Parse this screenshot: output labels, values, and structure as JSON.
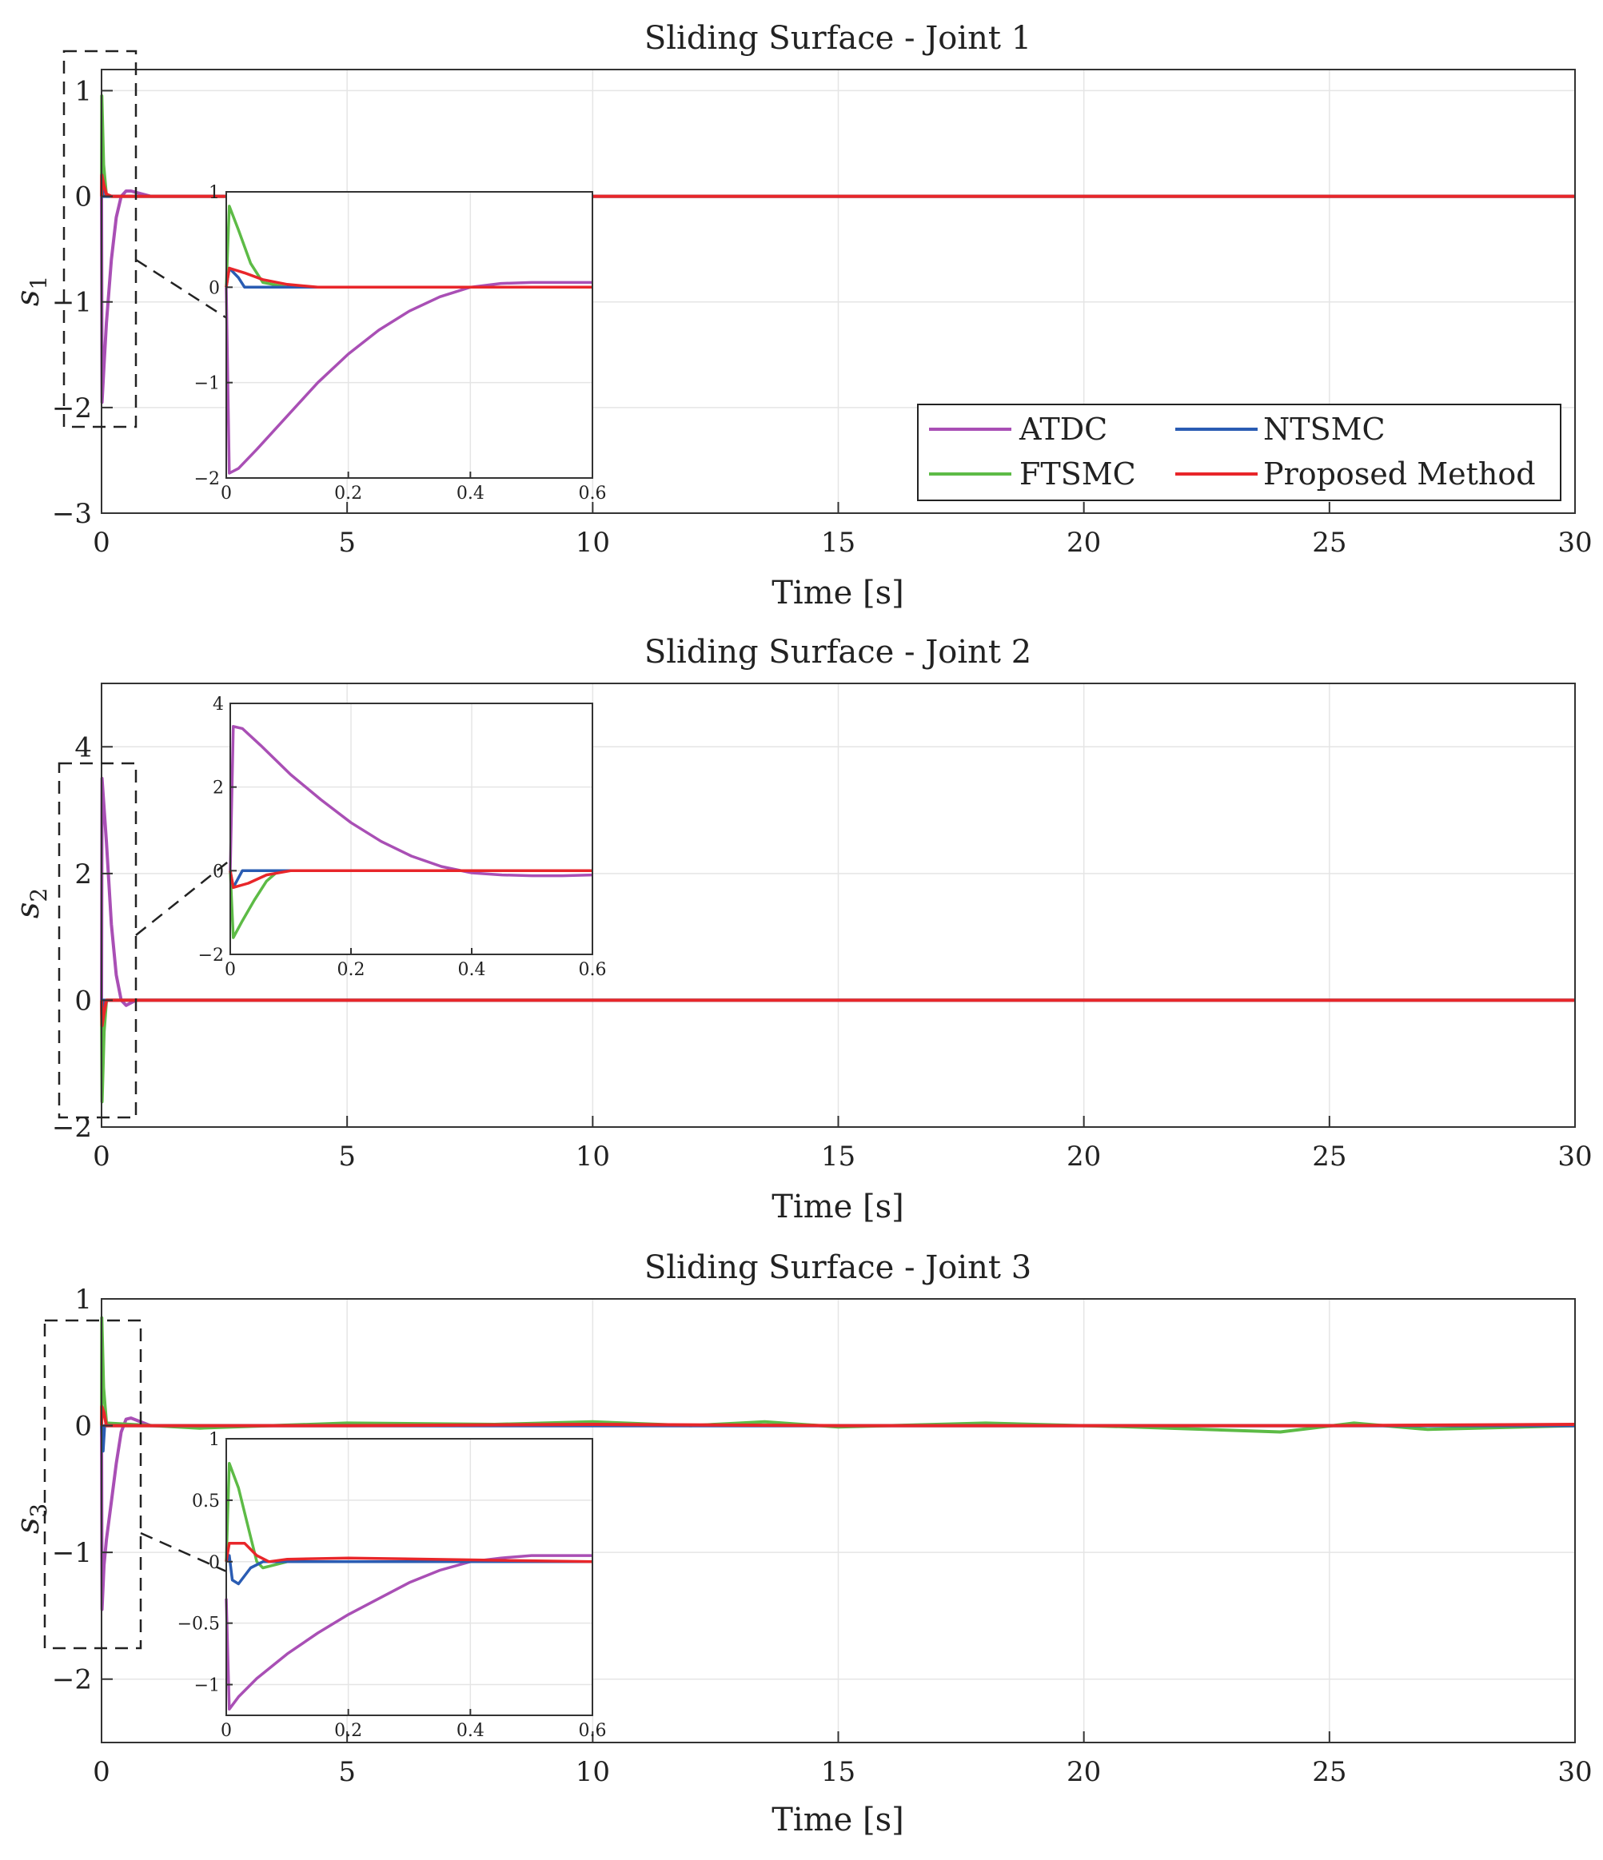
{
  "colors": {
    "atdc": "#a94fb5",
    "ftsmc": "#5dbb46",
    "ntsmc": "#2a5cb3",
    "proposed": "#e8262a"
  },
  "legend": {
    "atdc": "ATDC",
    "ftsmc": "FTSMC",
    "ntsmc": "NTSMC",
    "proposed": "Proposed Method"
  },
  "chart_data": [
    {
      "type": "line",
      "title": "Sliding Surface - Joint 1",
      "xlabel": "Time [s]",
      "ylabel": "s",
      "ylabel_sub": "1",
      "xlim": [
        0,
        30
      ],
      "ylim": [
        -3,
        1.2
      ],
      "xticks": [
        0,
        5,
        10,
        15,
        20,
        25,
        30
      ],
      "yticks": [
        -3,
        -2,
        -1,
        0,
        1
      ],
      "grid": true,
      "legend_position": "bottom-right",
      "series": [
        {
          "name": "ATDC",
          "x": [
            0,
            0.01,
            0.05,
            0.1,
            0.2,
            0.3,
            0.4,
            0.5,
            0.6,
            1,
            30
          ],
          "y": [
            0,
            -1.95,
            -1.6,
            -1.2,
            -0.6,
            -0.2,
            0,
            0.05,
            0.05,
            0,
            0
          ]
        },
        {
          "name": "FTSMC",
          "x": [
            0,
            0.005,
            0.04,
            0.1,
            0.2,
            30
          ],
          "y": [
            0,
            0.95,
            0.3,
            0,
            0,
            0
          ]
        },
        {
          "name": "NTSMC",
          "x": [
            0,
            0.005,
            0.03,
            0.05,
            30
          ],
          "y": [
            0,
            0.2,
            0,
            0,
            0
          ]
        },
        {
          "name": "Proposed Method",
          "x": [
            0,
            0.005,
            0.05,
            0.1,
            0.2,
            30
          ],
          "y": [
            0,
            0.2,
            0.1,
            0.02,
            0,
            0
          ]
        }
      ],
      "inset": {
        "xlim": [
          0,
          0.6
        ],
        "ylim": [
          -2,
          1
        ],
        "xticks": [
          0,
          0.2,
          0.4,
          0.6
        ],
        "yticks": [
          -2,
          -1,
          0,
          1
        ],
        "xtick_labels": [
          "0",
          "0.2",
          "0.4",
          "0.6"
        ],
        "ytick_labels": [
          "−2",
          "−1",
          "0",
          "1"
        ],
        "series": [
          {
            "name": "ATDC",
            "x": [
              0,
              0.005,
              0.02,
              0.05,
              0.1,
              0.15,
              0.2,
              0.25,
              0.3,
              0.35,
              0.4,
              0.45,
              0.5,
              0.55,
              0.6
            ],
            "y": [
              0,
              -1.95,
              -1.9,
              -1.7,
              -1.35,
              -1.0,
              -0.7,
              -0.45,
              -0.25,
              -0.1,
              0,
              0.04,
              0.05,
              0.05,
              0.05
            ]
          },
          {
            "name": "FTSMC",
            "x": [
              0,
              0.005,
              0.02,
              0.04,
              0.06,
              0.1,
              0.6
            ],
            "y": [
              0,
              0.85,
              0.6,
              0.25,
              0.05,
              0,
              0
            ]
          },
          {
            "name": "NTSMC",
            "x": [
              0,
              0.005,
              0.02,
              0.03,
              0.05,
              0.6
            ],
            "y": [
              0,
              0.2,
              0.1,
              0,
              0,
              0
            ]
          },
          {
            "name": "Proposed Method",
            "x": [
              0,
              0.005,
              0.03,
              0.06,
              0.1,
              0.15,
              0.6
            ],
            "y": [
              0,
              0.2,
              0.15,
              0.08,
              0.03,
              0,
              0
            ]
          }
        ]
      }
    },
    {
      "type": "line",
      "title": "Sliding Surface - Joint 2",
      "xlabel": "Time [s]",
      "ylabel": "s",
      "ylabel_sub": "2",
      "xlim": [
        0,
        30
      ],
      "ylim": [
        -2,
        5
      ],
      "xticks": [
        0,
        5,
        10,
        15,
        20,
        25,
        30
      ],
      "yticks": [
        -2,
        0,
        2,
        4
      ],
      "grid": true,
      "series": [
        {
          "name": "ATDC",
          "x": [
            0,
            0.01,
            0.1,
            0.2,
            0.3,
            0.4,
            0.5,
            0.7,
            30
          ],
          "y": [
            0,
            3.5,
            2.5,
            1.2,
            0.4,
            0,
            -0.08,
            0,
            0
          ]
        },
        {
          "name": "FTSMC",
          "x": [
            0,
            0.01,
            0.05,
            0.1,
            30
          ],
          "y": [
            0,
            -1.6,
            -0.5,
            0,
            0
          ]
        },
        {
          "name": "NTSMC",
          "x": [
            0,
            0.01,
            0.03,
            30
          ],
          "y": [
            0,
            -0.3,
            0,
            0
          ]
        },
        {
          "name": "Proposed Method",
          "x": [
            0,
            0.01,
            0.05,
            0.1,
            30
          ],
          "y": [
            0,
            -0.4,
            -0.2,
            0,
            0
          ]
        }
      ],
      "inset": {
        "xlim": [
          0,
          0.6
        ],
        "ylim": [
          -2,
          4
        ],
        "xticks": [
          0,
          0.2,
          0.4,
          0.6
        ],
        "yticks": [
          -2,
          0,
          2,
          4
        ],
        "xtick_labels": [
          "0",
          "0.2",
          "0.4",
          "0.6"
        ],
        "ytick_labels": [
          "−2",
          "0",
          "2",
          "4"
        ],
        "series": [
          {
            "name": "ATDC",
            "x": [
              0,
              0.005,
              0.02,
              0.05,
              0.1,
              0.15,
              0.2,
              0.25,
              0.3,
              0.35,
              0.4,
              0.45,
              0.5,
              0.55,
              0.6
            ],
            "y": [
              0,
              3.45,
              3.4,
              3.0,
              2.3,
              1.7,
              1.15,
              0.7,
              0.35,
              0.1,
              -0.05,
              -0.1,
              -0.12,
              -0.12,
              -0.1
            ]
          },
          {
            "name": "FTSMC",
            "x": [
              0,
              0.005,
              0.02,
              0.04,
              0.06,
              0.08,
              0.6
            ],
            "y": [
              0,
              -1.6,
              -1.2,
              -0.7,
              -0.25,
              0,
              0
            ]
          },
          {
            "name": "NTSMC",
            "x": [
              0,
              0.005,
              0.02,
              0.6
            ],
            "y": [
              0,
              -0.4,
              0,
              0
            ]
          },
          {
            "name": "Proposed Method",
            "x": [
              0,
              0.005,
              0.03,
              0.06,
              0.1,
              0.6
            ],
            "y": [
              0,
              -0.4,
              -0.3,
              -0.1,
              0,
              0
            ]
          }
        ]
      }
    },
    {
      "type": "line",
      "title": "Sliding Surface - Joint 3",
      "xlabel": "Time [s]",
      "ylabel": "s",
      "ylabel_sub": "3",
      "xlim": [
        0,
        30
      ],
      "ylim": [
        -2.5,
        1
      ],
      "xticks": [
        0,
        5,
        10,
        15,
        20,
        25,
        30
      ],
      "yticks": [
        -2,
        -1,
        0,
        1
      ],
      "grid": true,
      "series": [
        {
          "name": "ATDC",
          "x": [
            0,
            0.01,
            0.05,
            0.1,
            0.2,
            0.3,
            0.4,
            0.5,
            0.6,
            1,
            30
          ],
          "y": [
            0,
            -1.45,
            -1.1,
            -0.9,
            -0.6,
            -0.3,
            -0.05,
            0.05,
            0.06,
            0,
            0
          ]
        },
        {
          "name": "FTSMC",
          "x": [
            0,
            0.005,
            0.04,
            0.1,
            2,
            5,
            8,
            10,
            12,
            13.5,
            15,
            18,
            21,
            24,
            25.5,
            27,
            30
          ],
          "y": [
            0,
            0.85,
            0.3,
            0.02,
            -0.02,
            0.02,
            0.01,
            0.03,
            0,
            0.03,
            -0.01,
            0.02,
            -0.01,
            -0.05,
            0.02,
            -0.03,
            0
          ]
        },
        {
          "name": "NTSMC",
          "x": [
            0,
            0.005,
            0.03,
            0.06,
            0.1,
            30
          ],
          "y": [
            0,
            0,
            -0.2,
            0,
            0,
            0
          ]
        },
        {
          "name": "Proposed Method",
          "x": [
            0,
            0.005,
            0.05,
            0.1,
            0.2,
            5,
            10,
            15,
            20,
            25,
            30
          ],
          "y": [
            0,
            0.15,
            0.1,
            0,
            0,
            0,
            0.01,
            0,
            0,
            0,
            0.01
          ]
        }
      ],
      "inset": {
        "xlim": [
          0,
          0.6
        ],
        "ylim": [
          -1.25,
          1
        ],
        "xticks": [
          0,
          0.2,
          0.4,
          0.6
        ],
        "yticks": [
          -1,
          -0.5,
          0,
          0.5,
          1
        ],
        "xtick_labels": [
          "0",
          "0.2",
          "0.4",
          "0.6"
        ],
        "ytick_labels": [
          "−1",
          "−0.5",
          "0",
          "0.5",
          "1"
        ],
        "series": [
          {
            "name": "ATDC",
            "x": [
              0,
              0.005,
              0.02,
              0.05,
              0.1,
              0.15,
              0.2,
              0.25,
              0.3,
              0.35,
              0.4,
              0.45,
              0.5,
              0.55,
              0.6
            ],
            "y": [
              -0.3,
              -1.2,
              -1.1,
              -0.95,
              -0.75,
              -0.58,
              -0.43,
              -0.3,
              -0.17,
              -0.07,
              0,
              0.03,
              0.05,
              0.05,
              0.05
            ]
          },
          {
            "name": "FTSMC",
            "x": [
              0,
              0.005,
              0.02,
              0.04,
              0.05,
              0.06,
              0.1,
              0.6
            ],
            "y": [
              0,
              0.8,
              0.6,
              0.2,
              0,
              -0.05,
              0,
              0
            ]
          },
          {
            "name": "NTSMC",
            "x": [
              0,
              0.005,
              0.01,
              0.02,
              0.04,
              0.06,
              0.6
            ],
            "y": [
              0,
              0.05,
              -0.15,
              -0.18,
              -0.05,
              0,
              0
            ]
          },
          {
            "name": "Proposed Method",
            "x": [
              0,
              0.005,
              0.03,
              0.05,
              0.07,
              0.1,
              0.2,
              0.6
            ],
            "y": [
              0,
              0.15,
              0.15,
              0.05,
              0,
              0.02,
              0.03,
              0
            ]
          }
        ]
      }
    }
  ]
}
